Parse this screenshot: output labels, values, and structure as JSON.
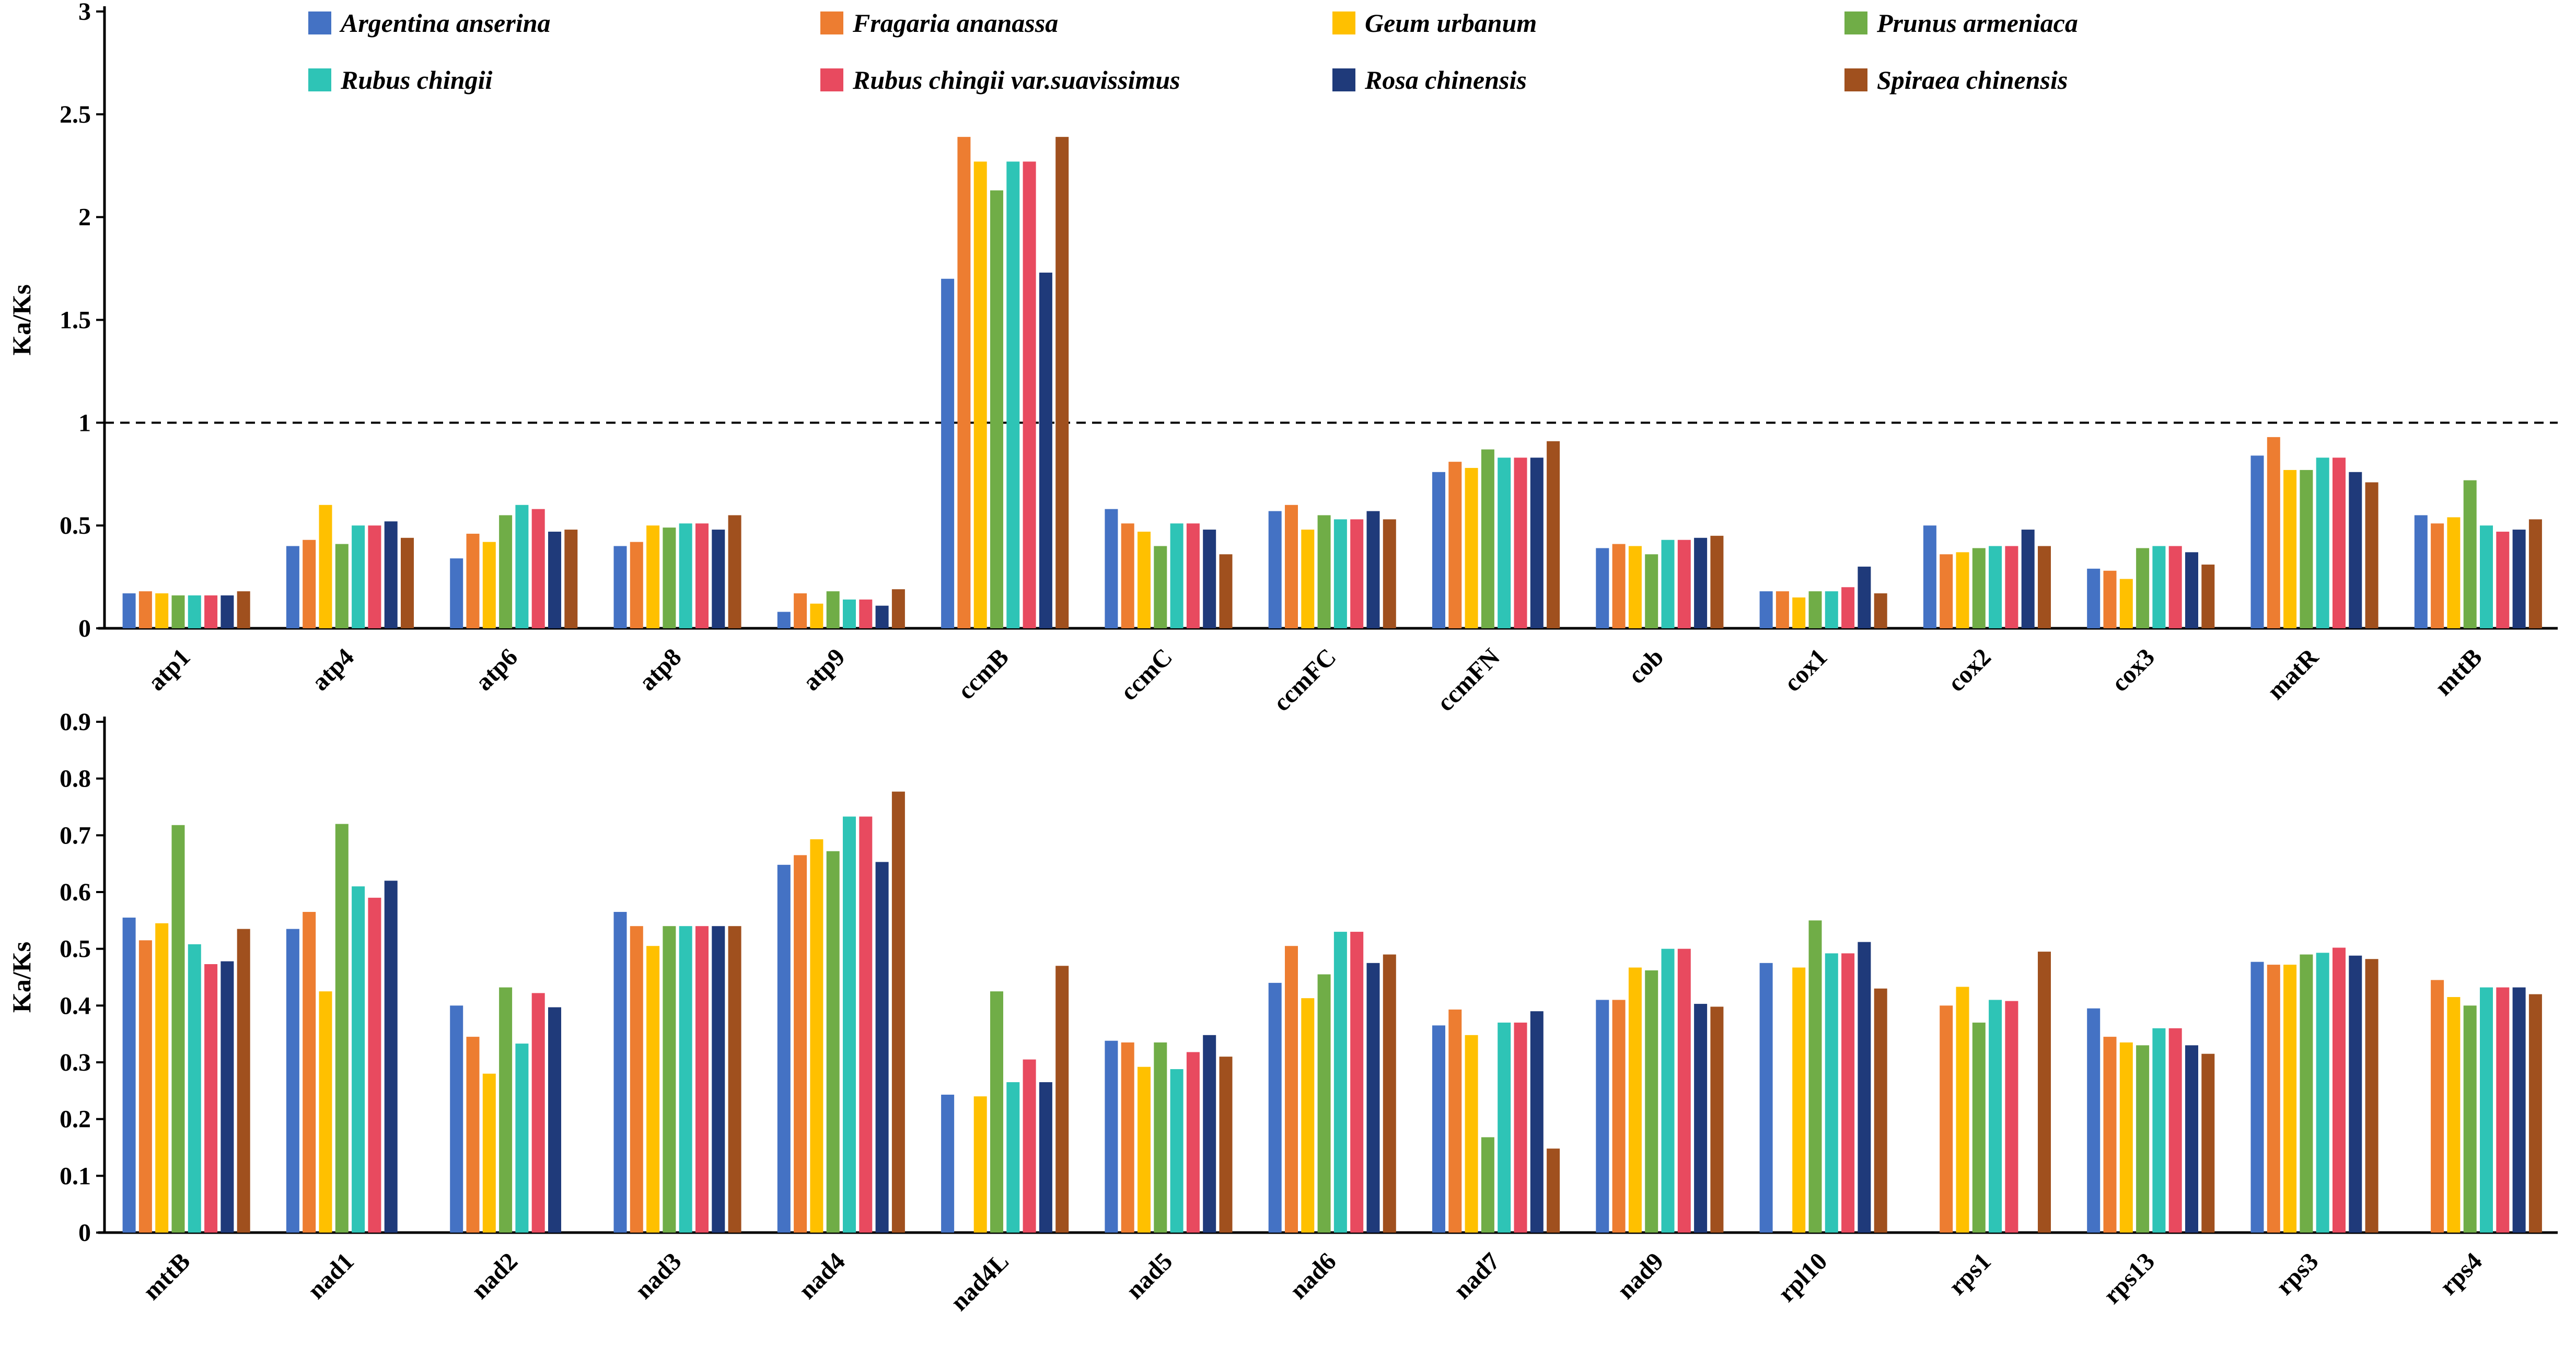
{
  "chart_data": [
    {
      "type": "bar",
      "panel": "top",
      "ylabel": "Ka/Ks",
      "ylim": [
        0,
        3
      ],
      "yticks": [
        0,
        0.5,
        1,
        1.5,
        2,
        2.5,
        3
      ],
      "ytick_labels": [
        "0",
        "0.5",
        "1",
        "1.5",
        "2",
        "2.5",
        "3"
      ],
      "reference_line": 1,
      "legend_position": "top",
      "categories": [
        "atp1",
        "atp4",
        "atp6",
        "atp8",
        "atp9",
        "ccmB",
        "ccmC",
        "ccmFC",
        "ccmFN",
        "cob",
        "cox1",
        "cox2",
        "cox3",
        "matR",
        "mttB"
      ],
      "series": [
        {
          "name": "Argentina anserina",
          "color": "#4472C4",
          "values": [
            0.17,
            0.4,
            0.34,
            0.4,
            0.08,
            1.7,
            0.58,
            0.57,
            0.76,
            0.39,
            0.18,
            0.5,
            0.29,
            0.84,
            0.55
          ]
        },
        {
          "name": "Fragaria ananassa",
          "color": "#ED7D31",
          "values": [
            0.18,
            0.43,
            0.46,
            0.42,
            0.17,
            2.39,
            0.51,
            0.6,
            0.81,
            0.41,
            0.18,
            0.36,
            0.28,
            0.93,
            0.51
          ]
        },
        {
          "name": "Geum urbanum",
          "color": "#FFC000",
          "values": [
            0.17,
            0.6,
            0.42,
            0.5,
            0.12,
            2.27,
            0.47,
            0.48,
            0.78,
            0.4,
            0.15,
            0.37,
            0.24,
            0.77,
            0.54
          ]
        },
        {
          "name": "Prunus armeniaca",
          "color": "#70AD47",
          "values": [
            0.16,
            0.41,
            0.55,
            0.49,
            0.18,
            2.13,
            0.4,
            0.55,
            0.87,
            0.36,
            0.18,
            0.39,
            0.39,
            0.77,
            0.72
          ]
        },
        {
          "name": "Rubus chingii",
          "color": "#2EC4B6",
          "values": [
            0.16,
            0.5,
            0.6,
            0.51,
            0.14,
            2.27,
            0.51,
            0.53,
            0.83,
            0.43,
            0.18,
            0.4,
            0.4,
            0.83,
            0.5
          ]
        },
        {
          "name": "Rubus chingii var.suavissimus",
          "color": "#E84A5F",
          "values": [
            0.16,
            0.5,
            0.58,
            0.51,
            0.14,
            2.27,
            0.51,
            0.53,
            0.83,
            0.43,
            0.2,
            0.4,
            0.4,
            0.83,
            0.47
          ]
        },
        {
          "name": "Rosa chinensis",
          "color": "#1F3A7A",
          "values": [
            0.16,
            0.52,
            0.47,
            0.48,
            0.11,
            1.73,
            0.48,
            0.57,
            0.83,
            0.44,
            0.3,
            0.48,
            0.37,
            0.76,
            0.48
          ]
        },
        {
          "name": "Spiraea chinensis",
          "color": "#A0501E",
          "values": [
            0.18,
            0.44,
            0.48,
            0.55,
            0.19,
            2.39,
            0.36,
            0.53,
            0.91,
            0.45,
            0.17,
            0.4,
            0.31,
            0.71,
            0.53
          ]
        }
      ]
    },
    {
      "type": "bar",
      "panel": "bottom",
      "ylabel": "Ka/Ks",
      "ylim": [
        0,
        0.9
      ],
      "yticks": [
        0,
        0.1,
        0.2,
        0.3,
        0.4,
        0.5,
        0.6,
        0.7,
        0.8,
        0.9
      ],
      "ytick_labels": [
        "0",
        "0.1",
        "0.2",
        "0.3",
        "0.4",
        "0.5",
        "0.6",
        "0.7",
        "0.8",
        "0.9"
      ],
      "categories": [
        "mttB",
        "nad1",
        "nad2",
        "nad3",
        "nad4",
        "nad4L",
        "nad5",
        "nad6",
        "nad7",
        "nad9",
        "rpl10",
        "rps1",
        "rps13",
        "rps3",
        "rps4"
      ],
      "series": [
        {
          "name": "Argentina anserina",
          "color": "#4472C4",
          "values": [
            0.555,
            0.535,
            0.4,
            0.565,
            0.648,
            0.243,
            0.338,
            0.44,
            0.365,
            0.41,
            0.475,
            null,
            0.395,
            0.477,
            null
          ]
        },
        {
          "name": "Fragaria ananassa",
          "color": "#ED7D31",
          "values": [
            0.515,
            0.565,
            0.345,
            0.54,
            0.665,
            null,
            0.335,
            0.505,
            0.393,
            0.41,
            null,
            0.4,
            0.345,
            0.472,
            0.445
          ]
        },
        {
          "name": "Geum urbanum",
          "color": "#FFC000",
          "values": [
            0.545,
            0.425,
            0.28,
            0.505,
            0.693,
            0.24,
            0.292,
            0.413,
            0.348,
            0.467,
            0.467,
            0.433,
            0.335,
            0.472,
            0.415
          ]
        },
        {
          "name": "Prunus armeniaca",
          "color": "#70AD47",
          "values": [
            0.718,
            0.72,
            0.432,
            0.54,
            0.672,
            0.425,
            0.335,
            0.455,
            0.168,
            0.462,
            0.55,
            0.37,
            0.33,
            0.49,
            0.4
          ]
        },
        {
          "name": "Rubus chingii",
          "color": "#2EC4B6",
          "values": [
            0.508,
            0.61,
            0.333,
            0.54,
            0.733,
            0.265,
            0.288,
            0.53,
            0.37,
            0.5,
            0.492,
            0.41,
            0.36,
            0.493,
            0.432
          ]
        },
        {
          "name": "Rubus chingii var.suavissimus",
          "color": "#E84A5F",
          "values": [
            0.473,
            0.59,
            0.422,
            0.54,
            0.733,
            0.305,
            0.318,
            0.53,
            0.37,
            0.5,
            0.492,
            0.408,
            0.36,
            0.502,
            0.432
          ]
        },
        {
          "name": "Rosa chinensis",
          "color": "#1F3A7A",
          "values": [
            0.478,
            0.62,
            0.397,
            0.54,
            0.653,
            0.265,
            0.348,
            0.475,
            0.39,
            0.403,
            0.512,
            null,
            0.33,
            0.488,
            0.432
          ]
        },
        {
          "name": "Spiraea chinensis",
          "color": "#A0501E",
          "values": [
            0.535,
            null,
            null,
            0.54,
            0.777,
            0.47,
            0.31,
            0.49,
            0.148,
            0.398,
            0.43,
            0.495,
            0.315,
            0.482,
            0.42
          ]
        }
      ]
    }
  ]
}
